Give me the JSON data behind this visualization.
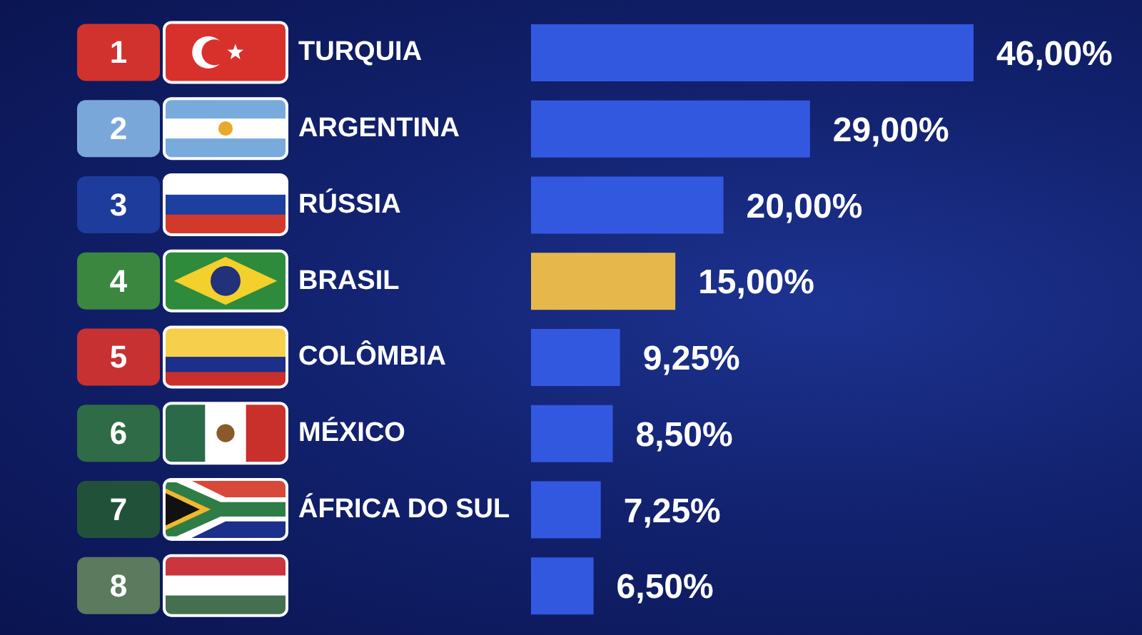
{
  "chart_data": {
    "type": "bar",
    "orientation": "horizontal",
    "categories": [
      "TURQUIA",
      "ARGENTINA",
      "RÚSSIA",
      "BRASIL",
      "COLÔMBIA",
      "MÉXICO",
      "ÁFRICA DO SUL",
      null
    ],
    "values": [
      46,
      29,
      20,
      15,
      9.25,
      8.5,
      7.25,
      6.5
    ],
    "colors": [
      "#3358e0",
      "#3358e0",
      "#3358e0",
      "#e6b84b",
      "#3358e0",
      "#3358e0",
      "#3358e0",
      "#3358e0"
    ],
    "value_labels": [
      "46,00%",
      "29,00%",
      "20,00%",
      "15,00%",
      "9,25%",
      "8,50%",
      "7,25%",
      "6,50%"
    ],
    "annotations": [
      "1",
      "2",
      "3",
      "4",
      "5",
      "6",
      "7",
      "8"
    ],
    "tick_labels": "y"
  }
}
